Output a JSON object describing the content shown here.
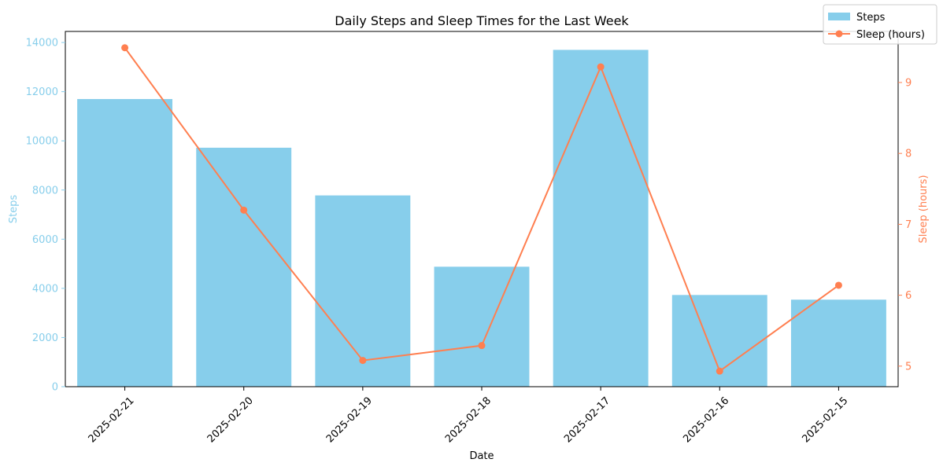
{
  "chart_data": {
    "type": "bar",
    "title": "Daily Steps and Sleep Times for the Last Week",
    "xlabel": "Date",
    "categories": [
      "2025-02-21",
      "2025-02-20",
      "2025-02-19",
      "2025-02-18",
      "2025-02-17",
      "2025-02-16",
      "2025-02-15"
    ],
    "series": [
      {
        "name": "Steps",
        "type": "bar",
        "axis": "left",
        "color": "#87CEEB",
        "values": [
          11700,
          9720,
          7780,
          4880,
          13700,
          3730,
          3540
        ]
      },
      {
        "name": "Sleep (hours)",
        "type": "line",
        "axis": "right",
        "color": "#FF7F50",
        "values": [
          9.49,
          7.2,
          5.08,
          5.29,
          9.22,
          4.93,
          6.14
        ]
      }
    ],
    "left_axis": {
      "label": "Steps",
      "color": "#87CEEB",
      "ylim": [
        0,
        14450
      ],
      "ticks": [
        "0",
        "2000",
        "4000",
        "6000",
        "8000",
        "10000",
        "12000",
        "14000"
      ]
    },
    "right_axis": {
      "label": "Sleep (hours)",
      "color": "#FF7F50",
      "ylim": [
        4.71,
        9.72
      ],
      "ticks": [
        "5",
        "6",
        "7",
        "8",
        "9"
      ]
    },
    "legend": {
      "position": "top-right",
      "entries": [
        "Steps",
        "Sleep (hours)"
      ]
    },
    "grid": false
  }
}
